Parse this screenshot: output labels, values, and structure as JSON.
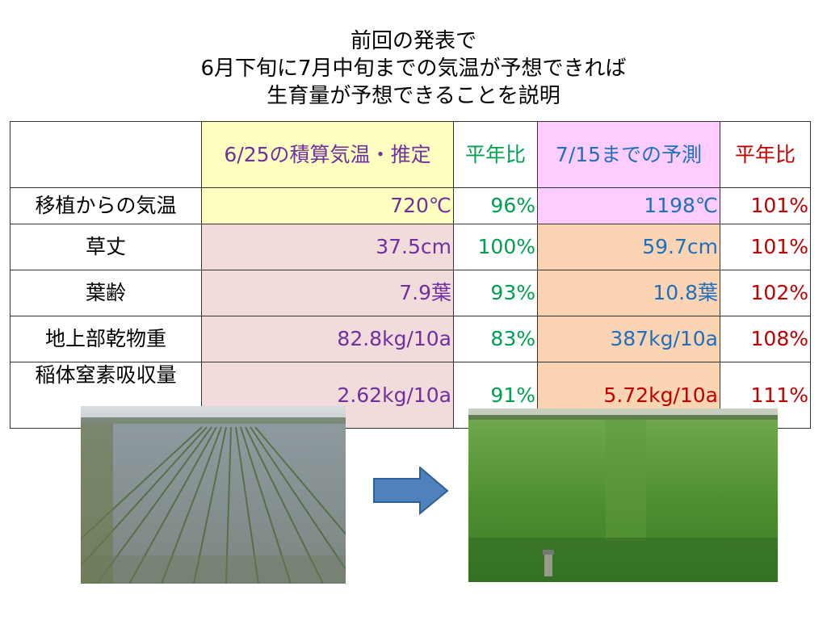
{
  "title": {
    "line1": "前回の発表で",
    "line2": "6月下旬に7月中旬までの気温が予想できれば",
    "line3": "生育量が予想できることを説明"
  },
  "table": {
    "headers": [
      "",
      "6/25の積算気温・推定",
      "平年比",
      "7/15までの予測",
      "平年比"
    ],
    "rows": [
      {
        "label": "移植からの気温",
        "v1": "720℃",
        "r1": "96%",
        "v2": "1198℃",
        "r2": "101%"
      },
      {
        "label": "草丈",
        "v1": "37.5cm",
        "r1": "100%",
        "v2": "59.7cm",
        "r2": "101%"
      },
      {
        "label": "葉齢",
        "v1": "7.9葉",
        "r1": "93%",
        "v2": "10.8葉",
        "r2": "102%"
      },
      {
        "label": "地上部乾物重",
        "v1": "82.8kg/10a",
        "r1": "83%",
        "v2": "387kg/10a",
        "r2": "108%"
      },
      {
        "label": "稲体窒素吸収量",
        "v1": "2.62kg/10a",
        "r1": "91%",
        "v2": "5.72kg/10a",
        "r2": "111%"
      }
    ]
  },
  "colors": {
    "purple": "#7030a0",
    "green": "#00a050",
    "blue": "#1f6fc0",
    "red": "#c00000",
    "yellow_bg": "#ffffc0",
    "pink_bg": "#f2dcdb",
    "magenta_bg": "#ffccff",
    "orange_bg": "#fbd4b4",
    "arrow": "#4f81bd"
  },
  "images": {
    "left": "young-rice-paddy-photo",
    "arrow": "right-arrow-icon",
    "right": "grown-rice-paddy-photo"
  }
}
